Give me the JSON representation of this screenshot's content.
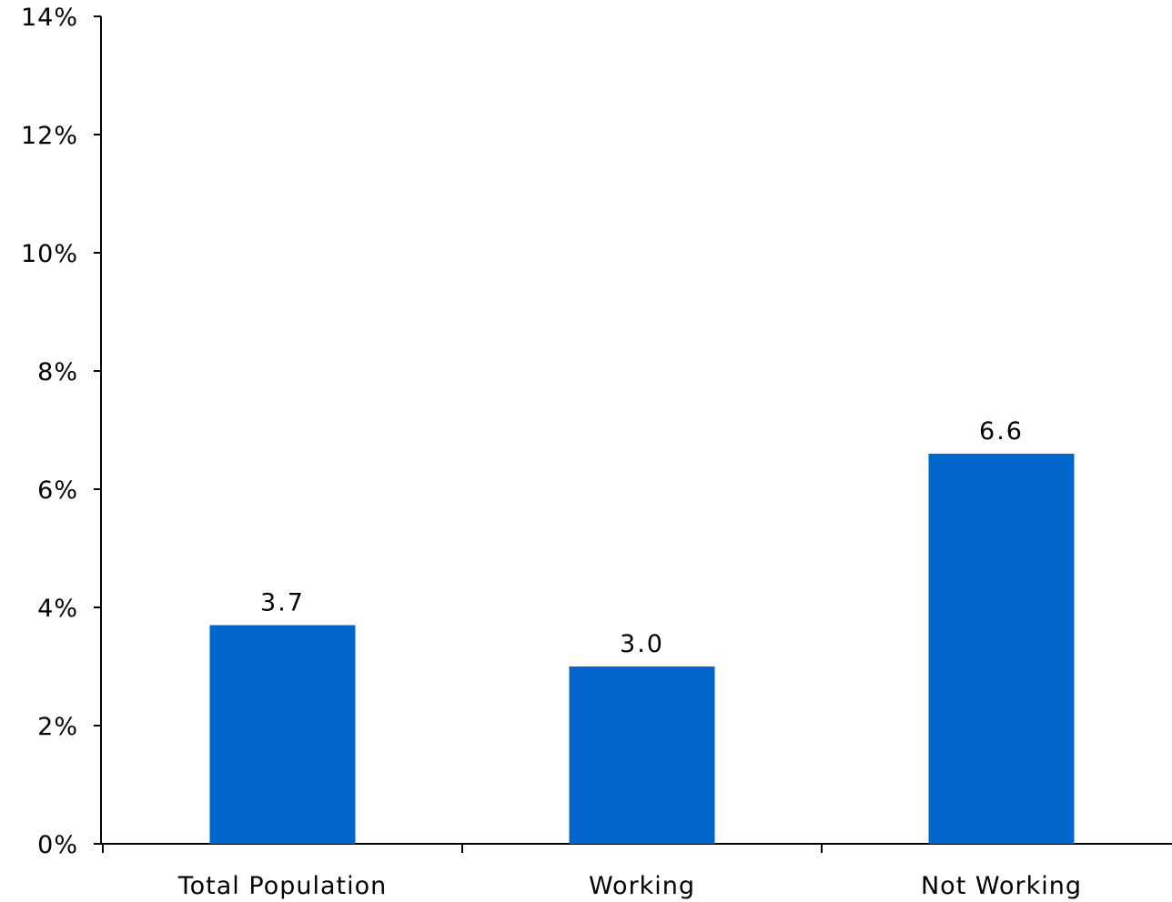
{
  "chart_data": {
    "type": "bar",
    "categories": [
      "Total Population",
      "Working",
      "Not Working"
    ],
    "values": [
      3.7,
      3.0,
      6.6
    ],
    "data_labels": [
      "3.7",
      "3.0",
      "6.6"
    ],
    "y_ticks": [
      "0%",
      "2%",
      "4%",
      "6%",
      "8%",
      "10%",
      "12%",
      "14%"
    ],
    "ylim": [
      0,
      14
    ],
    "title": "",
    "xlabel": "",
    "ylabel": "",
    "grid": false,
    "legend": "none",
    "bar_color": "#0066CC"
  }
}
